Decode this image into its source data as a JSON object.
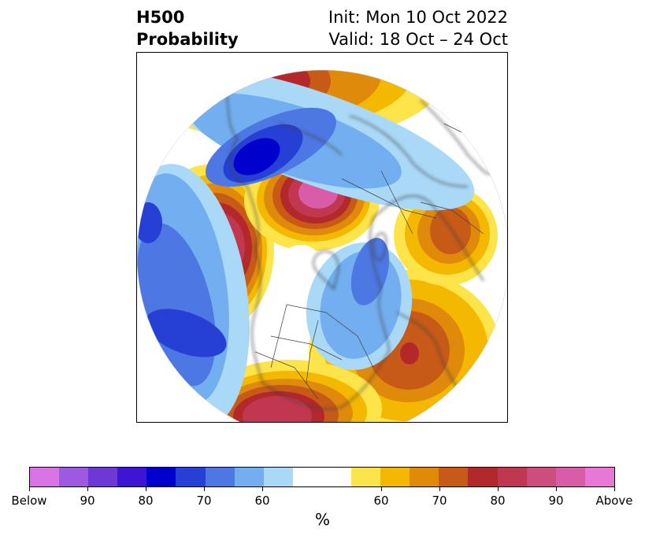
{
  "title": {
    "left_line1": "H500",
    "left_line2": "Probability",
    "right_line1": "Init: Mon 10 Oct 2022",
    "right_line2": "Valid: 18 Oct – 24 Oct"
  },
  "colorbar": {
    "unit": "%",
    "tick_labels": [
      "Below",
      "90",
      "80",
      "70",
      "60",
      "60",
      "70",
      "80",
      "90",
      "Above"
    ],
    "below_colors": [
      "#d874e6",
      "#9d5ae0",
      "#6e38d6",
      "#3c16d3",
      "#0000cc",
      "#2640d6",
      "#4d78e4",
      "#73aff0",
      "#aad9f8"
    ],
    "neutral_color": "#ffffff",
    "above_colors": [
      "#fde44a",
      "#f5b800",
      "#e08a0c",
      "#c85a18",
      "#b3282b",
      "#c23750",
      "#cc4e7e",
      "#d85ca8",
      "#e878d6"
    ]
  },
  "map": {
    "projection": "north polar stereographic",
    "colors": {
      "land_lines": "#404040",
      "above_shades": [
        "#fde44a",
        "#f5b800",
        "#e08a0c",
        "#c85a18",
        "#b3282b",
        "#c23750",
        "#d85ca8"
      ],
      "below_shades": [
        "#aad9f8",
        "#73aff0",
        "#4d78e4",
        "#2640d6",
        "#0000cc"
      ]
    }
  }
}
